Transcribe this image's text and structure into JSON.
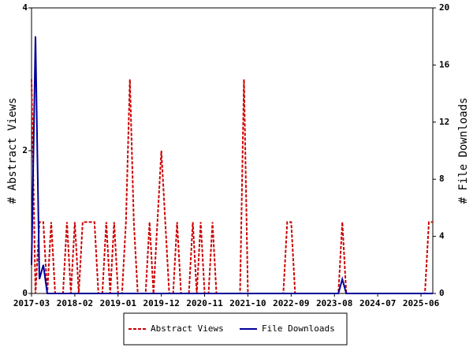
{
  "chart_data": {
    "type": "line",
    "y_label": "# Abstract Views",
    "y2_label": "# File Downloads",
    "x": [
      "2017-03",
      "2017-04",
      "2017-05",
      "2017-06",
      "2017-07",
      "2017-08",
      "2017-09",
      "2017-10",
      "2017-11",
      "2017-12",
      "2018-01",
      "2018-02",
      "2018-03",
      "2018-04",
      "2018-05",
      "2018-06",
      "2018-07",
      "2018-08",
      "2018-09",
      "2018-10",
      "2018-11",
      "2018-12",
      "2019-01",
      "2019-02",
      "2019-03",
      "2019-04",
      "2019-05",
      "2019-06",
      "2019-07",
      "2019-08",
      "2019-09",
      "2019-10",
      "2019-11",
      "2019-12",
      "2020-01",
      "2020-02",
      "2020-03",
      "2020-04",
      "2020-05",
      "2020-06",
      "2020-07",
      "2020-08",
      "2020-09",
      "2020-10",
      "2020-11",
      "2020-12",
      "2021-01",
      "2021-02",
      "2021-03",
      "2021-04",
      "2021-05",
      "2021-06",
      "2021-07",
      "2021-08",
      "2021-09",
      "2021-10",
      "2021-11",
      "2021-12",
      "2022-01",
      "2022-02",
      "2022-03",
      "2022-04",
      "2022-05",
      "2022-06",
      "2022-07",
      "2022-08",
      "2022-09",
      "2022-10",
      "2022-11",
      "2022-12",
      "2023-01",
      "2023-02",
      "2023-03",
      "2023-04",
      "2023-05",
      "2023-06",
      "2023-07",
      "2023-08",
      "2023-09",
      "2023-10",
      "2023-11",
      "2023-12",
      "2024-01",
      "2024-02",
      "2024-03",
      "2024-04",
      "2024-05",
      "2024-06",
      "2024-07",
      "2024-08",
      "2024-09",
      "2024-10",
      "2024-11",
      "2024-12",
      "2025-01",
      "2025-02",
      "2025-03",
      "2025-04",
      "2025-05",
      "2025-06",
      "2025-07",
      "2025-08",
      "2025-09"
    ],
    "xticks": [
      "2017-03",
      "2018-02",
      "2019-01",
      "2019-12",
      "2020-11",
      "2021-10",
      "2022-09",
      "2023-08",
      "2024-07",
      "2025-06"
    ],
    "series": [
      {
        "name": "Abstract Views",
        "color": "#cc0000",
        "dashed": true,
        "axis": "y",
        "values": [
          3,
          0,
          1,
          1,
          0,
          1,
          0,
          0,
          0,
          1,
          0,
          1,
          0,
          1,
          1,
          1,
          1,
          0,
          0,
          1,
          0,
          1,
          0,
          0,
          1,
          3,
          1,
          0,
          0,
          0,
          1,
          0,
          1,
          2,
          1,
          0,
          0,
          1,
          0,
          0,
          0,
          1,
          0,
          1,
          0,
          0,
          1,
          0,
          0,
          0,
          0,
          0,
          0,
          0,
          3,
          0,
          0,
          0,
          0,
          0,
          0,
          0,
          0,
          0,
          0,
          1,
          1,
          0,
          0,
          0,
          0,
          0,
          0,
          0,
          0,
          0,
          0,
          0,
          0,
          1,
          0,
          0,
          0,
          0,
          0,
          0,
          0,
          0,
          0,
          0,
          0,
          0,
          0,
          0,
          0,
          0,
          0,
          0,
          0,
          0,
          0,
          1,
          1
        ]
      },
      {
        "name": "File Downloads",
        "color": "#000099",
        "dashed": false,
        "axis": "y2",
        "values": [
          2,
          18,
          1,
          2,
          0,
          0,
          0,
          0,
          0,
          0,
          0,
          0,
          0,
          0,
          0,
          0,
          0,
          0,
          0,
          0,
          0,
          0,
          0,
          0,
          0,
          0,
          0,
          0,
          0,
          0,
          0,
          0,
          0,
          0,
          0,
          0,
          0,
          0,
          0,
          0,
          0,
          0,
          0,
          0,
          0,
          0,
          0,
          0,
          0,
          0,
          0,
          0,
          0,
          0,
          0,
          0,
          0,
          0,
          0,
          0,
          0,
          0,
          0,
          0,
          0,
          0,
          0,
          0,
          0,
          0,
          0,
          0,
          0,
          0,
          0,
          0,
          0,
          0,
          0,
          1,
          0,
          0,
          0,
          0,
          0,
          0,
          0,
          0,
          0,
          0,
          0,
          0,
          0,
          0,
          0,
          0,
          0,
          0,
          0,
          0,
          0,
          0,
          0
        ]
      }
    ],
    "ylim": [
      0,
      4
    ],
    "yticks": [
      0,
      2,
      4
    ],
    "y2lim": [
      0,
      20
    ],
    "y2ticks": [
      0,
      4,
      8,
      12,
      16,
      20
    ],
    "legend": "bottom"
  }
}
